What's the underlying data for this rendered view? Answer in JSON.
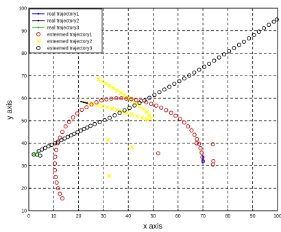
{
  "chart_data": {
    "type": "scatter",
    "title": "",
    "xlabel": "x axis",
    "ylabel": "y axis",
    "xlim": [
      0,
      100
    ],
    "ylim": [
      10,
      100
    ],
    "xticks": [
      "0",
      "10",
      "20",
      "30",
      "40",
      "50",
      "60",
      "70",
      "80",
      "90",
      "100"
    ],
    "yticks": [
      "10",
      "20",
      "30",
      "40",
      "50",
      "60",
      "70",
      "80",
      "90",
      "100"
    ],
    "grid": true,
    "grid_style": "dashed",
    "legend_position": "top-left",
    "series": [
      {
        "name": "real trajectory1",
        "kind": "line",
        "marker": "dot",
        "color": "#0000ff",
        "points": [
          [
            70,
            31.5
          ],
          [
            70,
            32.5
          ],
          [
            70,
            34
          ]
        ]
      },
      {
        "name": "real trajectory2",
        "kind": "line",
        "marker": "dot",
        "color": "#000000",
        "points": [
          [
            21,
            58.5
          ],
          [
            22,
            58.2
          ],
          [
            23.5,
            57.8
          ]
        ]
      },
      {
        "name": "real trajectory3",
        "kind": "line",
        "marker": "dot",
        "color": "#00cc00",
        "points": [
          [
            2,
            35
          ],
          [
            3,
            35.5
          ],
          [
            4,
            36
          ]
        ]
      },
      {
        "name": "esteemed trajectory1",
        "kind": "marker",
        "marker": "circle",
        "color": "#cc0000",
        "points": [
          [
            13.5,
            15.5
          ],
          [
            12.5,
            17.5
          ],
          [
            11.8,
            20
          ],
          [
            11.2,
            22.5
          ],
          [
            10.8,
            25
          ],
          [
            10.5,
            28
          ],
          [
            10.5,
            31
          ],
          [
            10.6,
            34
          ],
          [
            11,
            37
          ],
          [
            11.6,
            40
          ],
          [
            12.5,
            42.5
          ],
          [
            13.5,
            45
          ],
          [
            14.8,
            47.5
          ],
          [
            16.2,
            49.5
          ],
          [
            17.8,
            51.5
          ],
          [
            19.5,
            53.2
          ],
          [
            21.3,
            54.8
          ],
          [
            23.2,
            56
          ],
          [
            25.2,
            57.2
          ],
          [
            27.2,
            58.2
          ],
          [
            29.2,
            59
          ],
          [
            31.2,
            59.5
          ],
          [
            33.2,
            59.8
          ],
          [
            35.2,
            60
          ],
          [
            37.2,
            60
          ],
          [
            39.2,
            59.8
          ],
          [
            41.2,
            59.6
          ],
          [
            43.2,
            59.2
          ],
          [
            45.2,
            58.8
          ],
          [
            47.2,
            58.2
          ],
          [
            49.2,
            57.5
          ],
          [
            51.2,
            56.7
          ],
          [
            53.2,
            55.8
          ],
          [
            55.2,
            54.7
          ],
          [
            57.2,
            53.5
          ],
          [
            59,
            52.2
          ],
          [
            60.8,
            50.8
          ],
          [
            62.5,
            49.2
          ],
          [
            64,
            47.5
          ],
          [
            65.4,
            45.7
          ],
          [
            66.6,
            43.8
          ],
          [
            67.6,
            41.8
          ],
          [
            68.4,
            39.8
          ],
          [
            69,
            37.8
          ],
          [
            69.5,
            35.8
          ],
          [
            69.8,
            33.8
          ],
          [
            70,
            32
          ],
          [
            52,
            35.5
          ],
          [
            67.5,
            40
          ],
          [
            74,
            39.5
          ],
          [
            74.2,
            32
          ],
          [
            74,
            30.5
          ]
        ]
      },
      {
        "name": "esteemed trajectory2",
        "kind": "marker",
        "marker": "x",
        "color": "#ffff00",
        "points": [
          [
            28,
            68.5
          ],
          [
            29.5,
            67.5
          ],
          [
            31,
            66.5
          ],
          [
            32.5,
            65.5
          ],
          [
            34,
            64.5
          ],
          [
            35.5,
            63.5
          ],
          [
            37,
            62.4
          ],
          [
            38.5,
            61.3
          ],
          [
            40,
            60.2
          ],
          [
            41.5,
            59
          ],
          [
            43,
            57.8
          ],
          [
            44.5,
            56.5
          ],
          [
            46,
            55.2
          ],
          [
            47.5,
            53.8
          ],
          [
            48.5,
            52.5
          ],
          [
            49,
            51
          ],
          [
            47.5,
            50.6
          ],
          [
            45.5,
            51.3
          ],
          [
            43.5,
            52
          ],
          [
            41.5,
            52.8
          ],
          [
            39.5,
            53.5
          ],
          [
            37.5,
            54.2
          ],
          [
            35.5,
            54.8
          ],
          [
            33.5,
            55.4
          ],
          [
            31.5,
            56
          ],
          [
            29.5,
            56.5
          ],
          [
            27.5,
            57
          ],
          [
            25.5,
            57.5
          ],
          [
            23.5,
            58
          ],
          [
            31.8,
            41.5
          ],
          [
            41.5,
            38.3
          ],
          [
            32.3,
            25.5
          ]
        ]
      },
      {
        "name": "esteemed trajectory3",
        "kind": "marker",
        "marker": "circle",
        "color": "#000000",
        "points": [
          [
            2,
            35
          ],
          [
            3.3,
            35
          ],
          [
            4.6,
            34.5
          ],
          [
            4,
            36.5
          ],
          [
            5.3,
            37.2
          ],
          [
            6.6,
            37.9
          ],
          [
            7.9,
            38.6
          ],
          [
            9.2,
            39.3
          ],
          [
            10.5,
            40
          ],
          [
            11.8,
            40.7
          ],
          [
            13.1,
            41.4
          ],
          [
            14.4,
            42.1
          ],
          [
            15.7,
            42.8
          ],
          [
            17,
            43.5
          ],
          [
            18.3,
            44.2
          ],
          [
            19.6,
            44.9
          ],
          [
            20.9,
            45.6
          ],
          [
            22.2,
            46.3
          ],
          [
            23.5,
            47
          ],
          [
            24.8,
            47.7
          ],
          [
            26.5,
            48.5
          ],
          [
            28.5,
            49.4
          ],
          [
            30.5,
            50.3
          ],
          [
            32.5,
            51.3
          ],
          [
            34.5,
            52.4
          ],
          [
            36.5,
            53.5
          ],
          [
            38.5,
            54.6
          ],
          [
            40.5,
            55.7
          ],
          [
            42.5,
            56.8
          ],
          [
            44.5,
            57.9
          ],
          [
            46.5,
            59
          ],
          [
            48.5,
            60.2
          ],
          [
            50.5,
            61.5
          ],
          [
            52.5,
            62.7
          ],
          [
            54.5,
            63.9
          ],
          [
            56.5,
            65.1
          ],
          [
            58.5,
            66.4
          ],
          [
            60.5,
            67.6
          ],
          [
            62.5,
            68.8
          ],
          [
            64.5,
            70.1
          ],
          [
            66.5,
            71.4
          ],
          [
            68.5,
            72.7
          ],
          [
            70.5,
            74
          ],
          [
            72.5,
            75.3
          ],
          [
            74.5,
            76.7
          ],
          [
            76.5,
            78.1
          ],
          [
            78.5,
            79.5
          ],
          [
            80.5,
            80.9
          ],
          [
            82.5,
            82.3
          ],
          [
            84.5,
            83.7
          ],
          [
            86.5,
            85.1
          ],
          [
            88.5,
            86.6
          ],
          [
            90.5,
            88.1
          ],
          [
            92.5,
            89.6
          ],
          [
            94.5,
            91.1
          ],
          [
            96.5,
            92.6
          ],
          [
            98.5,
            94
          ],
          [
            99.7,
            95
          ]
        ]
      }
    ]
  }
}
